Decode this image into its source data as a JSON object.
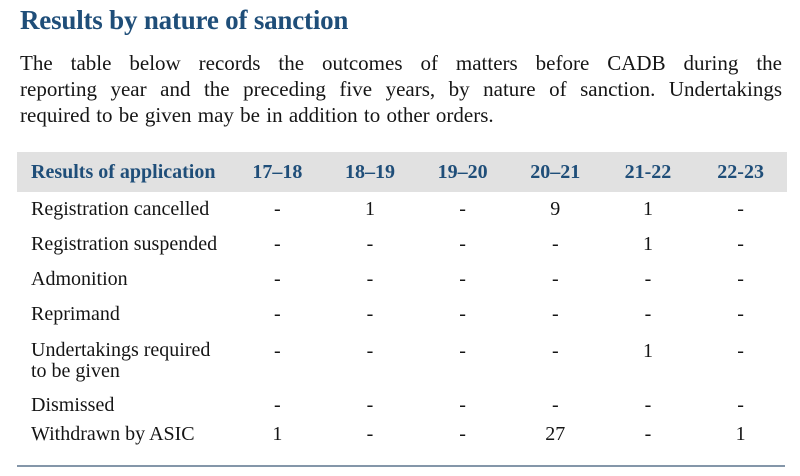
{
  "page": {
    "title": "Results by nature of sanction",
    "intro_lines": [
      "The table below records the outcomes of matters before CADB during the",
      "reporting year and the preceding five years, by nature of sanction. Undertakings",
      "required to be given may be in addition to other orders."
    ]
  },
  "table": {
    "columns": [
      "Results of application",
      "17–18",
      "18–19",
      "19–20",
      "20–21",
      "21-22",
      "22-23"
    ],
    "rows": [
      {
        "label": "Registration cancelled",
        "values": [
          "-",
          "1",
          "-",
          "9",
          "1",
          "-"
        ]
      },
      {
        "label": "Registration suspended",
        "values": [
          "-",
          "-",
          "-",
          "-",
          "1",
          "-"
        ]
      },
      {
        "label": "Admonition",
        "values": [
          "-",
          "-",
          "-",
          "-",
          "-",
          "-"
        ]
      },
      {
        "label": "Reprimand",
        "values": [
          "-",
          "-",
          "-",
          "-",
          "-",
          "-"
        ]
      },
      {
        "label": "Undertakings required\nto be given",
        "values": [
          "-",
          "-",
          "-",
          "-",
          "1",
          "-"
        ]
      },
      {
        "label": "Dismissed",
        "values": [
          "-",
          "-",
          "-",
          "-",
          "-",
          "-"
        ]
      },
      {
        "label": "Withdrawn by ASIC",
        "values": [
          "1",
          "-",
          "-",
          "27",
          "-",
          "1"
        ]
      }
    ]
  },
  "colors": {
    "accent_blue": "#1F4E79",
    "header_bg": "#E1E1E1",
    "rule": "#8496A9",
    "ink": "#151515"
  }
}
